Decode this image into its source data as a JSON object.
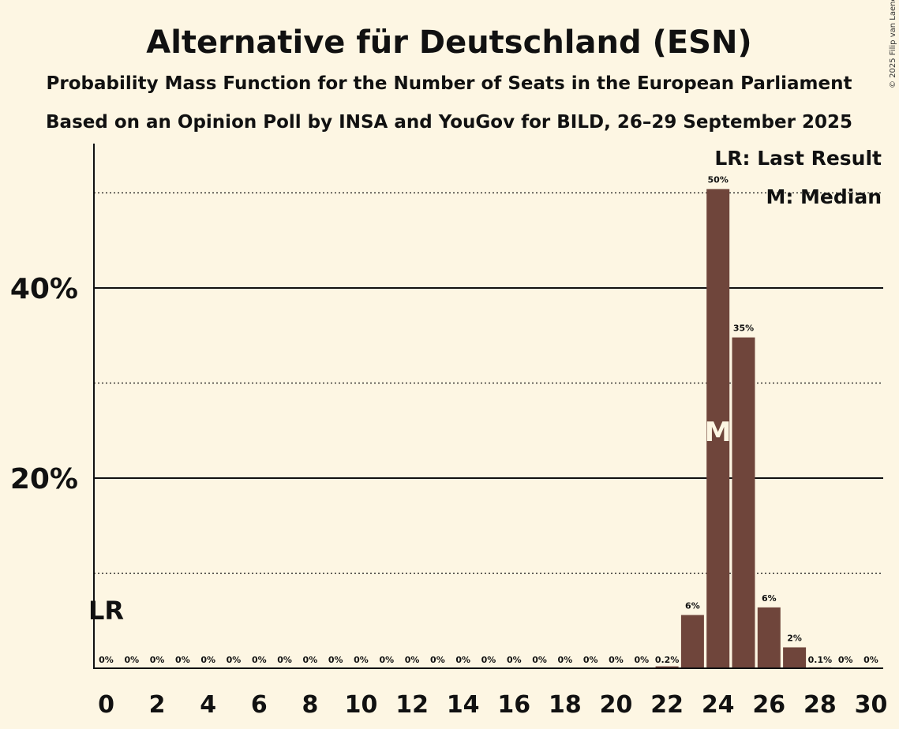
{
  "title": "Alternative für Deutschland (ESN)",
  "subtitle1": "Probability Mass Function for the Number of Seats in the European Parliament",
  "subtitle2": "Based on an Opinion Poll by INSA and YouGov for BILD, 26–29 September 2025",
  "copyright": "© 2025 Filip van Laenen",
  "legend": {
    "lr": "LR: Last Result",
    "m": "M: Median"
  },
  "markers": {
    "lr_label": "LR",
    "lr_seats": 0,
    "m_label": "M",
    "m_seats": 24
  },
  "colors": {
    "bar": "#6f453b",
    "background": "#fdf6e3",
    "text": "#111111"
  },
  "chart_data": {
    "type": "bar",
    "x": [
      0,
      1,
      2,
      3,
      4,
      5,
      6,
      7,
      8,
      9,
      10,
      11,
      12,
      13,
      14,
      15,
      16,
      17,
      18,
      19,
      20,
      21,
      22,
      23,
      24,
      25,
      26,
      27,
      28,
      29,
      30
    ],
    "values": [
      0,
      0,
      0,
      0,
      0,
      0,
      0,
      0,
      0,
      0,
      0,
      0,
      0,
      0,
      0,
      0,
      0,
      0,
      0,
      0,
      0,
      0,
      0.2,
      5.6,
      50.4,
      34.8,
      6.4,
      2.2,
      0.1,
      0,
      0
    ],
    "labels": [
      "0%",
      "0%",
      "0%",
      "0%",
      "0%",
      "0%",
      "0%",
      "0%",
      "0%",
      "0%",
      "0%",
      "0%",
      "0%",
      "0%",
      "0%",
      "0%",
      "0%",
      "0%",
      "0%",
      "0%",
      "0%",
      "0%",
      "0.2%",
      "6%",
      "50%",
      "35%",
      "6%",
      "2%",
      "0.1%",
      "0%",
      "0%"
    ],
    "xticks": [
      0,
      2,
      4,
      6,
      8,
      10,
      12,
      14,
      16,
      18,
      20,
      22,
      24,
      26,
      28,
      30
    ],
    "yticks_major": [
      {
        "value": 20,
        "label": "20%"
      },
      {
        "value": 40,
        "label": "40%"
      }
    ],
    "yticks_minor": [
      10,
      30,
      50
    ],
    "ylim": [
      0,
      55
    ],
    "grid": true,
    "legend_position": "top-right"
  }
}
